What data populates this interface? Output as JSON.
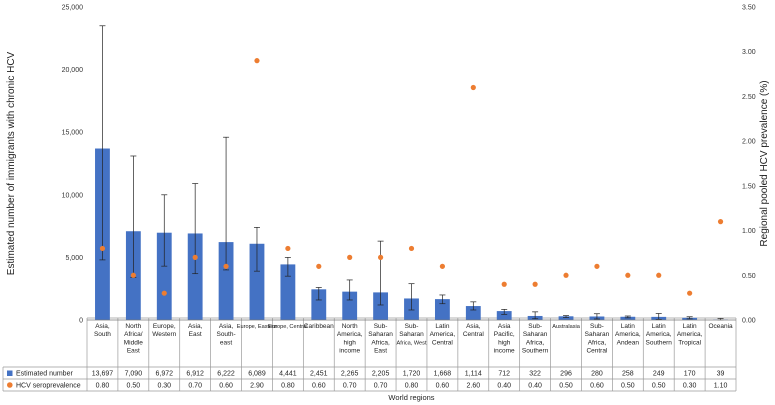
{
  "chart_data": {
    "type": "bar",
    "title": "",
    "xlabel": "World regions",
    "ylabel": "Estimated number of immigrants with chronic HCV",
    "y2label": "Regional pooled HCV prevalence (%)",
    "ylim": [
      0,
      25000
    ],
    "y2lim": [
      0,
      3.5
    ],
    "yticks": [
      "0",
      "5,000",
      "10,000",
      "15,000",
      "20,000",
      "25,000"
    ],
    "y2ticks": [
      "0.00",
      "0.50",
      "1.00",
      "1.50",
      "2.00",
      "2.50",
      "3.00",
      "3.50"
    ],
    "categories": [
      [
        "Asia,",
        "South"
      ],
      [
        "North",
        "Africa/",
        "Middle",
        "East"
      ],
      [
        "Europe,",
        "Western"
      ],
      [
        "Asia,",
        "East"
      ],
      [
        "Asia,",
        "South-",
        "east"
      ],
      [
        "Europe, Eastern"
      ],
      [
        "Europe, Central"
      ],
      [
        "Caribbean"
      ],
      [
        "North",
        "America,",
        "high",
        "income"
      ],
      [
        "Sub-",
        "Saharan",
        "Africa,",
        "East"
      ],
      [
        "Sub-",
        "Saharan",
        "Africa, West"
      ],
      [
        "Latin",
        "America,",
        "Central"
      ],
      [
        "Asia,",
        "Central"
      ],
      [
        "Asia",
        "Pacific,",
        "high",
        "income"
      ],
      [
        "Sub-",
        "Saharan",
        "Africa,",
        "Southern"
      ],
      [
        "Australasia"
      ],
      [
        "Sub-",
        "Saharan",
        "Africa,",
        "Central"
      ],
      [
        "Latin",
        "America,",
        "Andean"
      ],
      [
        "Latin",
        "America,",
        "Southern"
      ],
      [
        "Latin",
        "America,",
        "Tropical"
      ],
      [
        "Oceania"
      ]
    ],
    "series": [
      {
        "name": "Estimated number",
        "type": "bar",
        "axis": "left",
        "color": "#4472c4",
        "values": [
          13697,
          7090,
          6972,
          6912,
          6222,
          6089,
          4441,
          2451,
          2265,
          2205,
          1720,
          1668,
          1114,
          712,
          322,
          296,
          280,
          258,
          249,
          170,
          39
        ],
        "labels": [
          "13,697",
          "7,090",
          "6,972",
          "6,912",
          "6,222",
          "6,089",
          "4,441",
          "2,451",
          "2,265",
          "2,205",
          "1,720",
          "1,668",
          "1,114",
          "712",
          "322",
          "296",
          "280",
          "258",
          "249",
          "170",
          "39"
        ],
        "error_low": [
          4800,
          3400,
          4300,
          3700,
          4000,
          3900,
          3500,
          1600,
          1600,
          1200,
          800,
          1300,
          800,
          450,
          100,
          200,
          80,
          170,
          50,
          90,
          10
        ],
        "error_high": [
          23500,
          13100,
          10000,
          10900,
          14600,
          7400,
          5000,
          2600,
          3200,
          6300,
          2900,
          2000,
          1450,
          850,
          650,
          350,
          500,
          320,
          520,
          260,
          120
        ]
      },
      {
        "name": "HCV seroprevalence",
        "type": "scatter",
        "axis": "right",
        "color": "#ed7d31",
        "values": [
          0.8,
          0.5,
          0.3,
          0.7,
          0.6,
          2.9,
          0.8,
          0.6,
          0.7,
          0.7,
          0.8,
          0.6,
          2.6,
          0.4,
          0.4,
          0.5,
          0.6,
          0.5,
          0.5,
          0.3,
          1.1
        ],
        "labels": [
          "0.80",
          "0.50",
          "0.30",
          "0.70",
          "0.60",
          "2.90",
          "0.80",
          "0.60",
          "0.70",
          "0.70",
          "0.80",
          "0.60",
          "2.60",
          "0.40",
          "0.40",
          "0.50",
          "0.60",
          "0.50",
          "0.50",
          "0.30",
          "1.10"
        ]
      }
    ],
    "grid": false,
    "legend": "table-below"
  }
}
